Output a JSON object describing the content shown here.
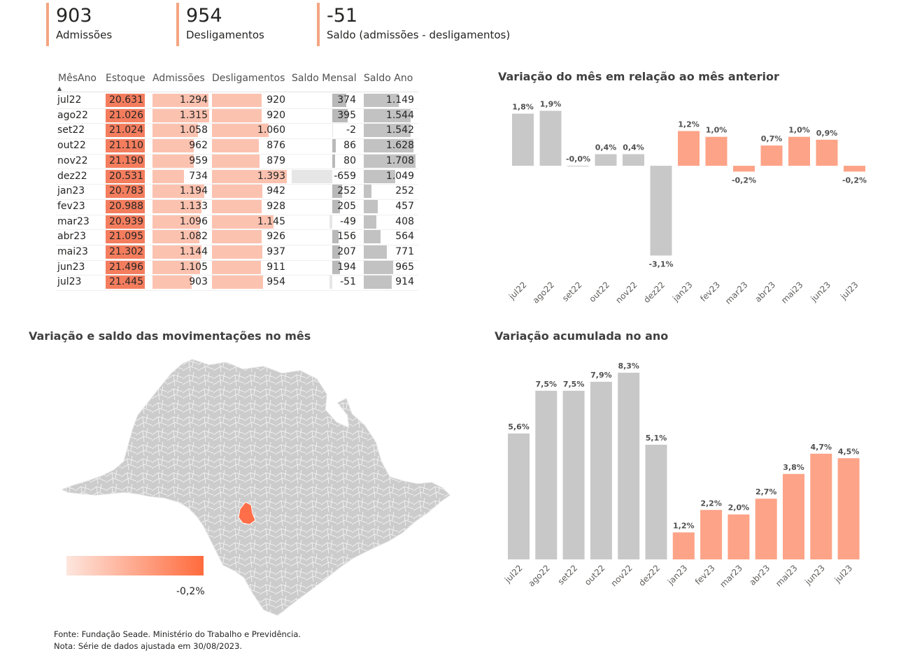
{
  "kpis": [
    {
      "value": "903",
      "label": "Admissões"
    },
    {
      "value": "954",
      "label": "Desligamentos"
    },
    {
      "value": "-51",
      "label": "Saldo (admissões - desligamentos)"
    }
  ],
  "table": {
    "columns": [
      "MêsAno",
      "Estoque",
      "Admissões",
      "Desligamentos",
      "Saldo Mensal",
      "Saldo Ano"
    ],
    "sort_indicator": "▲",
    "rows": [
      {
        "mes": "jul22",
        "estoque": "20.631",
        "admissoes": "1.294",
        "desligamentos": "920",
        "saldo_mensal": "374",
        "saldo_ano": "1.149"
      },
      {
        "mes": "ago22",
        "estoque": "21.026",
        "admissoes": "1.315",
        "desligamentos": "920",
        "saldo_mensal": "395",
        "saldo_ano": "1.544"
      },
      {
        "mes": "set22",
        "estoque": "21.024",
        "admissoes": "1.058",
        "desligamentos": "1.060",
        "saldo_mensal": "-2",
        "saldo_ano": "1.542"
      },
      {
        "mes": "out22",
        "estoque": "21.110",
        "admissoes": "962",
        "desligamentos": "876",
        "saldo_mensal": "86",
        "saldo_ano": "1.628"
      },
      {
        "mes": "nov22",
        "estoque": "21.190",
        "admissoes": "959",
        "desligamentos": "879",
        "saldo_mensal": "80",
        "saldo_ano": "1.708"
      },
      {
        "mes": "dez22",
        "estoque": "20.531",
        "admissoes": "734",
        "desligamentos": "1.393",
        "saldo_mensal": "-659",
        "saldo_ano": "1.049"
      },
      {
        "mes": "jan23",
        "estoque": "20.783",
        "admissoes": "1.194",
        "desligamentos": "942",
        "saldo_mensal": "252",
        "saldo_ano": "252"
      },
      {
        "mes": "fev23",
        "estoque": "20.988",
        "admissoes": "1.133",
        "desligamentos": "928",
        "saldo_mensal": "205",
        "saldo_ano": "457"
      },
      {
        "mes": "mar23",
        "estoque": "20.939",
        "admissoes": "1.096",
        "desligamentos": "1.145",
        "saldo_mensal": "-49",
        "saldo_ano": "408"
      },
      {
        "mes": "abr23",
        "estoque": "21.095",
        "admissoes": "1.082",
        "desligamentos": "926",
        "saldo_mensal": "156",
        "saldo_ano": "564"
      },
      {
        "mes": "mai23",
        "estoque": "21.302",
        "admissoes": "1.144",
        "desligamentos": "937",
        "saldo_mensal": "207",
        "saldo_ano": "771"
      },
      {
        "mes": "jun23",
        "estoque": "21.496",
        "admissoes": "1.105",
        "desligamentos": "911",
        "saldo_mensal": "194",
        "saldo_ano": "965"
      },
      {
        "mes": "jul23",
        "estoque": "21.445",
        "admissoes": "903",
        "desligamentos": "954",
        "saldo_mensal": "-51",
        "saldo_ano": "914"
      }
    ]
  },
  "map": {
    "title": "Variação e saldo das movimentações no mês",
    "legend_value": "-0,2%",
    "highlight_color": "#fe6e48",
    "base_color": "#cccccc"
  },
  "colors": {
    "gray": "#c8c8c8",
    "salmon": "#fda387",
    "estoque": "#f47d5e",
    "admissoes": "#fcc2b0"
  },
  "chart_data": [
    {
      "type": "bar",
      "title": "Variação do mês em relação ao mês anterior",
      "categories": [
        "jul22",
        "ago22",
        "set22",
        "out22",
        "nov22",
        "dez22",
        "jan23",
        "fev23",
        "mar23",
        "abr23",
        "mai23",
        "jun23",
        "jul23"
      ],
      "values": [
        1.8,
        1.9,
        -0.0,
        0.4,
        0.4,
        -3.1,
        1.2,
        1.0,
        -0.2,
        0.7,
        1.0,
        0.9,
        -0.2
      ],
      "labels": [
        "1,8%",
        "1,9%",
        "-0,0%",
        "0,4%",
        "0,4%",
        "-3,1%",
        "1,2%",
        "1,0%",
        "-0,2%",
        "0,7%",
        "1,0%",
        "0,9%",
        "-0,2%"
      ],
      "ylim": [
        -3.5,
        2.2
      ]
    },
    {
      "type": "bar",
      "title": "Variação acumulada no ano",
      "categories": [
        "jul22",
        "ago22",
        "set22",
        "out22",
        "nov22",
        "dez22",
        "jan23",
        "fev23",
        "mar23",
        "abr23",
        "mai23",
        "jun23",
        "jul23"
      ],
      "values": [
        5.6,
        7.5,
        7.5,
        7.9,
        8.3,
        5.1,
        1.2,
        2.2,
        2.0,
        2.7,
        3.8,
        4.7,
        4.5
      ],
      "labels": [
        "5,6%",
        "7,5%",
        "7,5%",
        "7,9%",
        "8,3%",
        "5,1%",
        "1,2%",
        "2,2%",
        "2,0%",
        "2,7%",
        "3,8%",
        "4,7%",
        "4,5%"
      ],
      "ylim": [
        0,
        8.8
      ]
    }
  ],
  "footer": {
    "source": "Fonte: Fundação Seade. Ministério do Trabalho e Previdência.",
    "note": "Nota: Série de dados ajustada em 30/08/2023."
  }
}
